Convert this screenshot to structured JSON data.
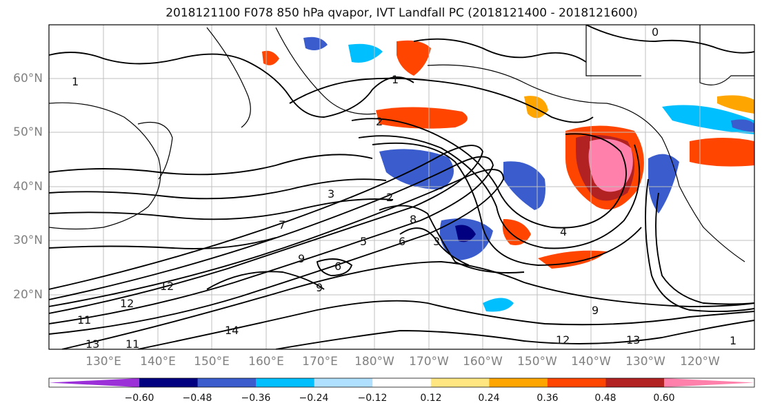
{
  "title": "2018121100 F078 850 hPa qvapor, IVT Landfall PC (2018121400 - 2018121600)",
  "lat_labels": [
    "60°N",
    "50°N",
    "40°N",
    "30°N",
    "20°N"
  ],
  "lon_labels": [
    "130°E",
    "140°E",
    "150°E",
    "160°E",
    "170°E",
    "180°W",
    "170°W",
    "160°W",
    "150°W",
    "140°W",
    "130°W",
    "120°W"
  ],
  "contour_labels": [
    "0",
    "1",
    "1",
    "2",
    "2",
    "3",
    "3",
    "4",
    "5",
    "6",
    "6",
    "7",
    "8",
    "9",
    "9",
    "9",
    "11",
    "11",
    "12",
    "12",
    "12",
    "13",
    "13",
    "14",
    "1"
  ],
  "colorbar": {
    "colors": [
      "#9b30d9",
      "#000080",
      "#3a5ccc",
      "#00bfff",
      "#b0e0ff",
      "#ffffff",
      "#ffe680",
      "#ffa500",
      "#ff4500",
      "#b22222",
      "#ff80aa"
    ],
    "tick_labels": [
      "−0.60",
      "−0.48",
      "−0.36",
      "−0.24",
      "−0.12",
      "0.12",
      "0.24",
      "0.36",
      "0.48",
      "0.60"
    ]
  }
}
